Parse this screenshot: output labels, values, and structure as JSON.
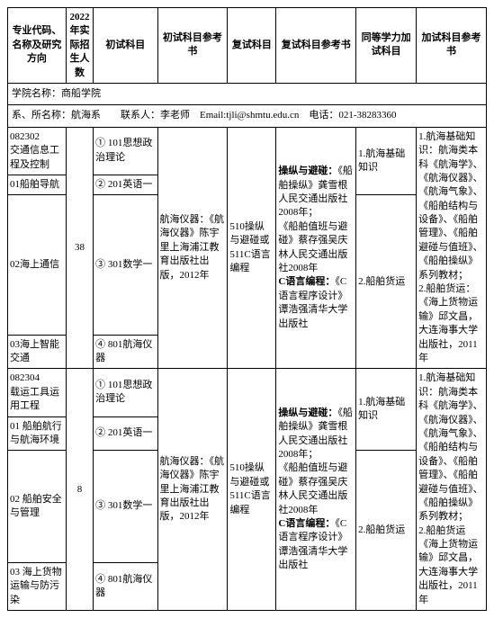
{
  "headers": {
    "code": "专业代码、名称及研究方向",
    "enroll": "2022年实际招生人数",
    "primary_subj": "初试科目",
    "primary_ref": "初试科目参考书",
    "retest_subj": "复试科目",
    "retest_ref": "复试科目参考书",
    "equiv": "同等学力加试科目",
    "extra_ref": "加试科目参考书"
  },
  "meta": {
    "school_label": "学院名称：",
    "school": "商船学院",
    "dept_label": "系、所名称：",
    "dept": "航海系",
    "contact_label": "联系人：",
    "contact": "李老师",
    "email_label": "Email:",
    "email": "tjli@shmtu.edu.cn",
    "phone_label": "电话：",
    "phone": "021-38283360"
  },
  "block1": {
    "rows": [
      {
        "code": "082302\n交通信息工程及控制",
        "subj": "① 101思想政治理论"
      },
      {
        "code": "01船舶导航",
        "subj": "② 201英语一"
      },
      {
        "code": "02海上通信",
        "subj": "③ 301数学一"
      },
      {
        "code": "03海上智能交通",
        "subj": "④ 801航海仪器"
      }
    ],
    "enroll": "38",
    "primary_ref": "航海仪器：《航海仪器》陈宇里上海浦江教育出版社出版，2012年",
    "retest_subj": "510操纵与避碰或511C语言编程",
    "retest_ref_parts": {
      "t1_label": "操纵与避碰：",
      "t1_body": "《船舶操纵》龚雪根人民交通出版社2008年；\n《船舶值班与避碰》蔡存强吴庆林人民交通出版社2008年",
      "t2_label": "C语言编程：",
      "t2_body": "《C语言程序设计》谭浩强清华大学出版社"
    },
    "equiv1": "1.航海基础知识",
    "equiv2": "2.船舶货运",
    "extra_ref": "1.航海基础知识：航海类本科《航海学》、《航海仪器》、《航海气象》、《船舶结构与设备》、《船舶管理》、《船舶避碰与值班》、《船舶操纵》系列教材；\n2.船舶货运：《海上货物运输》邱文昌，大连海事大学出版社，2011年"
  },
  "block2": {
    "rows": [
      {
        "code": "082304\n载运工具运用工程",
        "subj": "① 101思想政治理论"
      },
      {
        "code": "01 船舶航行与航海环境",
        "subj": "② 201英语一"
      },
      {
        "code": "02 船舶安全与管理",
        "subj": "③ 301数学一"
      },
      {
        "code": "03 海上货物运输与防污染",
        "subj": "④ 801航海仪器"
      }
    ],
    "enroll": "8",
    "primary_ref": "航海仪器：《航海仪器》陈宇里上海浦江教育出版社出版，2012年",
    "retest_subj": "510操纵与避碰或511C语言编程",
    "retest_ref_parts": {
      "t1_label": "操纵与避碰：",
      "t1_body": "《船舶操纵》龚雪根人民交通出版社2008年；\n《船舶值班与避碰》蔡存强吴庆林人民交通出版社2008年",
      "t2_label": "C语言编程：",
      "t2_body": "《C语言程序设计》谭浩强清华大学出版社"
    },
    "equiv1": "1.航海基础知识",
    "equiv2": "2.船舶货运",
    "extra_ref": "1.航海基础知识：航海类本科《航海学》、《航海仪器》、《航海气象》、《船舶结构与设备》、《船舶管理》、《船舶避碰与值班》、《船舶操纵》系列教材；\n2.船舶货运《海上货物运输》邱文昌，大连海事大学出版社，2011年"
  }
}
